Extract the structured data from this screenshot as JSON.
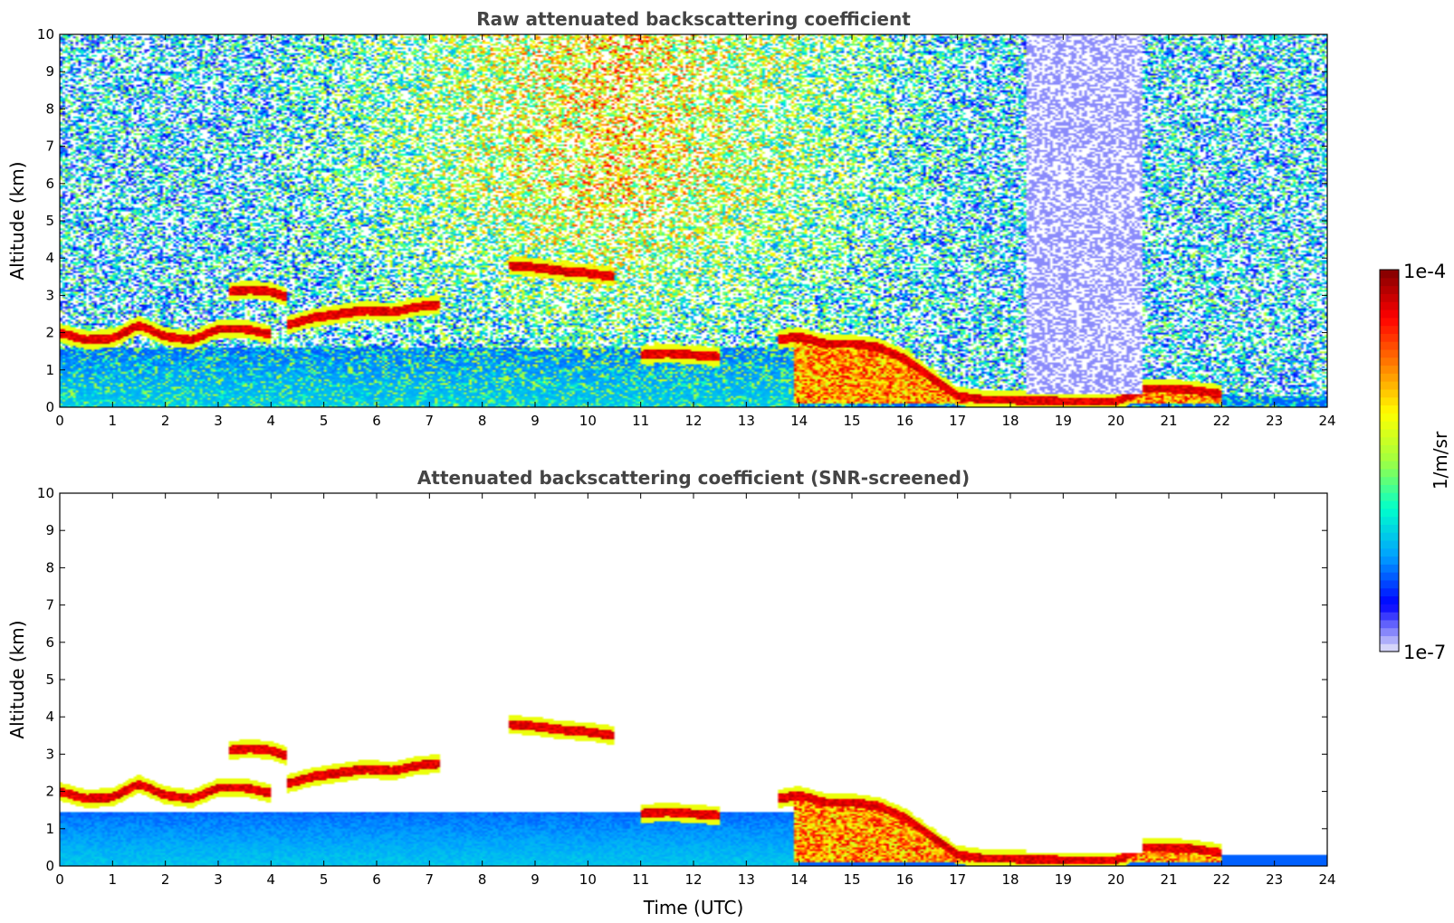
{
  "chart_data": [
    {
      "type": "heatmap",
      "title": "Raw attenuated backscattering coefficient",
      "xlabel": "",
      "ylabel": "Altitude (km)",
      "xlim": [
        0,
        24
      ],
      "ylim": [
        0,
        10
      ],
      "x_ticks": [
        "0",
        "1",
        "2",
        "3",
        "4",
        "5",
        "6",
        "7",
        "8",
        "9",
        "10",
        "11",
        "12",
        "13",
        "14",
        "15",
        "16",
        "17",
        "18",
        "19",
        "20",
        "21",
        "22",
        "23",
        "24"
      ],
      "y_ticks": [
        "0",
        "1",
        "2",
        "3",
        "4",
        "5",
        "6",
        "7",
        "8",
        "9",
        "10"
      ],
      "screened": false,
      "features": [
        {
          "kind": "cloud_layer",
          "x": [
            0,
            0.5,
            1.0,
            1.5,
            2.0,
            2.5,
            3.0,
            3.5,
            4.0
          ],
          "y": [
            2.0,
            1.8,
            1.85,
            2.2,
            1.9,
            1.8,
            2.1,
            2.1,
            1.95
          ]
        },
        {
          "kind": "cloud_layer",
          "x": [
            3.2,
            3.6,
            4.0,
            4.3
          ],
          "y": [
            3.1,
            3.15,
            3.1,
            2.95
          ]
        },
        {
          "kind": "cloud_layer",
          "x": [
            4.3,
            4.8,
            5.3,
            5.8,
            6.3,
            6.8,
            7.2
          ],
          "y": [
            2.2,
            2.4,
            2.5,
            2.6,
            2.55,
            2.7,
            2.75
          ]
        },
        {
          "kind": "cloud_layer",
          "x": [
            8.5,
            9.0,
            9.5,
            10.0,
            10.5
          ],
          "y": [
            3.8,
            3.75,
            3.65,
            3.6,
            3.5
          ]
        },
        {
          "kind": "cloud_layer",
          "x": [
            11.0,
            11.5,
            12.0,
            12.5
          ],
          "y": [
            1.4,
            1.45,
            1.4,
            1.35
          ]
        },
        {
          "kind": "cloud_layer",
          "x": [
            13.6,
            14.0,
            14.5,
            15.0,
            15.5,
            16.0,
            16.5,
            17.0,
            17.5,
            18.0,
            19.0,
            20.0,
            20.5,
            21.0,
            21.5,
            22.0
          ],
          "y": [
            1.8,
            1.9,
            1.7,
            1.7,
            1.6,
            1.3,
            0.8,
            0.3,
            0.2,
            0.2,
            0.15,
            0.15,
            0.5,
            0.5,
            0.45,
            0.35
          ]
        },
        {
          "kind": "aerosol_layer",
          "x_range": [
            0,
            14
          ],
          "y_range": [
            0,
            1.6
          ]
        },
        {
          "kind": "clear_air",
          "x_range": [
            18.3,
            20.5
          ],
          "y_range": [
            0,
            10
          ]
        }
      ]
    },
    {
      "type": "heatmap",
      "title": "Attenuated backscattering coefficient (SNR-screened)",
      "xlabel": "Time (UTC)",
      "ylabel": "Altitude (km)",
      "xlim": [
        0,
        24
      ],
      "ylim": [
        0,
        10
      ],
      "x_ticks": [
        "0",
        "1",
        "2",
        "3",
        "4",
        "5",
        "6",
        "7",
        "8",
        "9",
        "10",
        "11",
        "12",
        "13",
        "14",
        "15",
        "16",
        "17",
        "18",
        "19",
        "20",
        "21",
        "22",
        "23",
        "24"
      ],
      "y_ticks": [
        "0",
        "1",
        "2",
        "3",
        "4",
        "5",
        "6",
        "7",
        "8",
        "9",
        "10"
      ],
      "screened": true
    }
  ],
  "colorbar": {
    "label": "1/m/sr",
    "max_label": "1e-4",
    "min_label": "1e-7",
    "colormap": "jet",
    "colors": [
      "#e8e8f8",
      "#0000ff",
      "#00a0ff",
      "#00ffcc",
      "#a0ff40",
      "#ffff00",
      "#ff8000",
      "#ff0000",
      "#800000"
    ]
  }
}
